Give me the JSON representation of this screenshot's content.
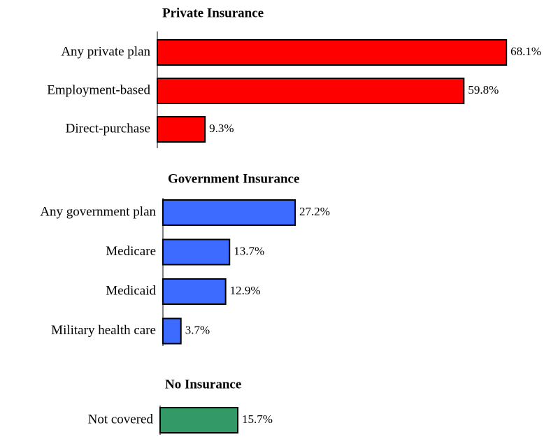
{
  "chart_data": [
    {
      "type": "bar",
      "title": "Private Insurance",
      "categories": [
        "Any private plan",
        "Employment-based",
        "Direct-purchase"
      ],
      "values": [
        68.1,
        59.8,
        9.3
      ],
      "value_labels": [
        "68.1%",
        "59.8%",
        "9.3%"
      ],
      "color": "#ff0000"
    },
    {
      "type": "bar",
      "title": "Government Insurance",
      "categories": [
        "Any government plan",
        "Medicare",
        "Medicaid",
        "Military health care"
      ],
      "values": [
        27.2,
        13.7,
        12.9,
        3.7
      ],
      "value_labels": [
        "27.2%",
        "13.7%",
        "12.9%",
        "3.7%"
      ],
      "color": "#3d6bff"
    },
    {
      "type": "bar",
      "title": "No Insurance",
      "categories": [
        "Not covered"
      ],
      "values": [
        15.7
      ],
      "value_labels": [
        "15.7%"
      ],
      "color": "#339966"
    }
  ]
}
